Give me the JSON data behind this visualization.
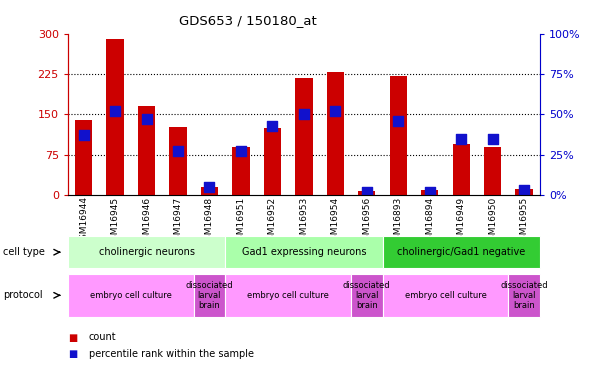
{
  "title": "GDS653 / 150180_at",
  "samples": [
    "GSM16944",
    "GSM16945",
    "GSM16946",
    "GSM16947",
    "GSM16948",
    "GSM16951",
    "GSM16952",
    "GSM16953",
    "GSM16954",
    "GSM16956",
    "GSM16893",
    "GSM16894",
    "GSM16949",
    "GSM16950",
    "GSM16955"
  ],
  "counts": [
    140,
    290,
    165,
    127,
    15,
    90,
    125,
    218,
    228,
    8,
    222,
    10,
    95,
    90,
    12
  ],
  "percentile": [
    37,
    52,
    47,
    27,
    5,
    27,
    43,
    50,
    52,
    2,
    46,
    2,
    35,
    35,
    3
  ],
  "ylim_left": [
    0,
    300
  ],
  "ylim_right": [
    0,
    100
  ],
  "yticks_left": [
    0,
    75,
    150,
    225,
    300
  ],
  "yticks_right": [
    0,
    25,
    50,
    75,
    100
  ],
  "bar_color_red": "#cc0000",
  "bar_color_blue": "#1111cc",
  "red_bar_width": 0.55,
  "blue_marker_size": 60,
  "cell_type_groups": [
    {
      "label": "cholinergic neurons",
      "indices": [
        0,
        1,
        2,
        3,
        4
      ],
      "color": "#ccffcc"
    },
    {
      "label": "Gad1 expressing neurons",
      "indices": [
        5,
        6,
        7,
        8,
        9
      ],
      "color": "#aaffaa"
    },
    {
      "label": "cholinergic/Gad1 negative",
      "indices": [
        10,
        11,
        12,
        13,
        14
      ],
      "color": "#33cc33"
    }
  ],
  "protocol_groups": [
    {
      "label": "embryo cell culture",
      "indices": [
        0,
        1,
        2,
        3
      ],
      "color": "#ff99ff"
    },
    {
      "label": "dissociated\nlarval\nbrain",
      "indices": [
        4
      ],
      "color": "#cc55cc"
    },
    {
      "label": "embryo cell culture",
      "indices": [
        5,
        6,
        7,
        8
      ],
      "color": "#ff99ff"
    },
    {
      "label": "dissociated\nlarval\nbrain",
      "indices": [
        9
      ],
      "color": "#cc55cc"
    },
    {
      "label": "embryo cell culture",
      "indices": [
        10,
        11,
        12,
        13
      ],
      "color": "#ff99ff"
    },
    {
      "label": "dissociated\nlarval\nbrain",
      "indices": [
        14
      ],
      "color": "#cc55cc"
    }
  ],
  "legend_labels": [
    "count",
    "percentile rank within the sample"
  ],
  "left_axis_color": "#cc0000",
  "right_axis_color": "#0000cc",
  "bg_color": "#ffffff"
}
